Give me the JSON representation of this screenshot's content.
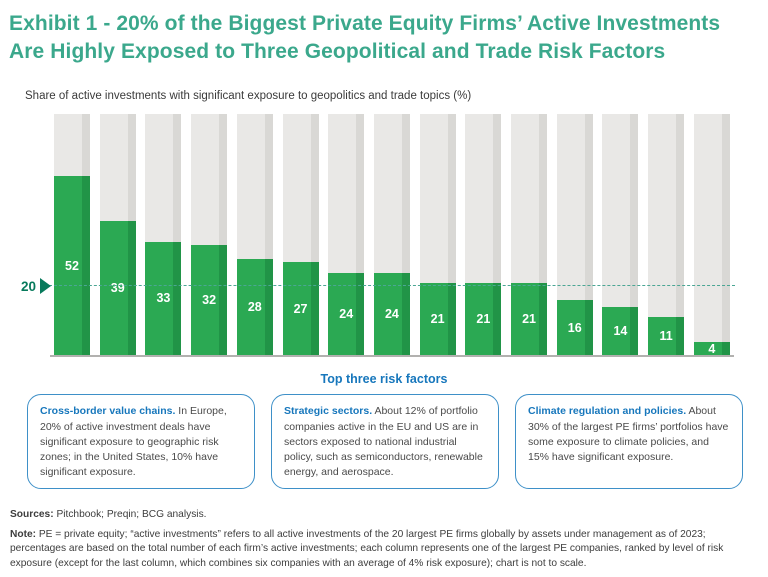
{
  "header": {
    "title": "Exhibit 1 - 20% of the Biggest Private Equity Firms’ Active Investments Are Highly Exposed to Three Geopolitical and Trade Risk Factors"
  },
  "chart_data": {
    "type": "bar",
    "title": "Share of active investments with significant exposure to geopolitics and trade topics (%)",
    "values": [
      52,
      39,
      33,
      32,
      28,
      27,
      24,
      24,
      21,
      21,
      21,
      16,
      14,
      11,
      4
    ],
    "threshold": 20,
    "threshold_label": "20",
    "xlabel": "",
    "ylabel": "Share of active investments (%)",
    "legend": "none",
    "grid": "single dashed reference line at 20",
    "bar_color": "#2BA953",
    "background_column_color": "#E9E8E6",
    "notes": "Each column is one of the largest PE companies ranked by risk exposure; last column combines six companies; chart is not to scale."
  },
  "risk_factors": {
    "heading": "Top three risk factors",
    "boxes": [
      {
        "lead": "Cross-border value chains.",
        "body": " In Europe, 20% of active investment deals have significant exposure to geographic risk zones; in the United States, 10% have significant exposure."
      },
      {
        "lead": "Strategic sectors.",
        "body": " About 12% of portfolio companies active in the EU and US are in sectors exposed to national industrial policy, such as semiconductors, renewable energy, and aerospace."
      },
      {
        "lead": "Climate regulation and policies.",
        "body": " About 30% of the largest PE firms’ portfolios have some exposure to climate policies, and 15% have significant exposure."
      }
    ]
  },
  "footer": {
    "sources_label": "Sources:",
    "sources_text": " Pitchbook; Preqin; BCG analysis.",
    "note_label": "Note:",
    "note_text": " PE = private equity; “active investments” refers to all active investments of the 20 largest PE firms globally by assets under management as of 2023; percentages are based on the total number of each firm’s active investments; each column represents one of the largest PE companies, ranked by level of risk exposure (except for the last column, which combines six companies with an average of 4% risk exposure); chart is not to scale."
  },
  "colors": {
    "title_teal": "#3BA88C",
    "bar_green": "#2BA953",
    "bar_green_shade": "#219447",
    "column_gray": "#E9E8E6",
    "column_gray_shade": "#D9D8D5",
    "threshold_teal": "#077A5C",
    "accent_blue": "#1777BC",
    "axis_gray": "#B2B1AF"
  }
}
